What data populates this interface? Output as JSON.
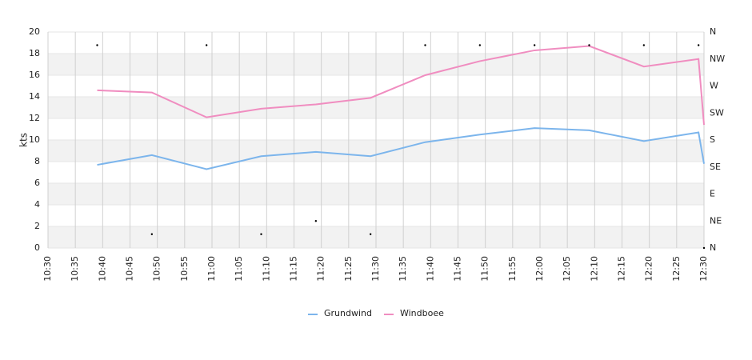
{
  "chart_data": {
    "type": "line",
    "ylabel": "kts",
    "x": [
      "10:39",
      "10:49",
      "10:59",
      "11:09",
      "11:19",
      "11:29",
      "11:39",
      "11:49",
      "11:59",
      "12:09",
      "12:19",
      "12:29",
      "12:30"
    ],
    "xlim": [
      "10:30",
      "12:30"
    ],
    "xticks": [
      "10:30",
      "10:35",
      "10:40",
      "10:45",
      "10:50",
      "10:55",
      "11:00",
      "11:05",
      "11:10",
      "11:15",
      "11:20",
      "11:25",
      "11:30",
      "11:35",
      "11:40",
      "11:45",
      "11:50",
      "11:55",
      "12:00",
      "12:05",
      "12:10",
      "12:15",
      "12:20",
      "12:25",
      "12:30"
    ],
    "ylim": [
      0,
      20
    ],
    "yticks": [
      0,
      2,
      4,
      6,
      8,
      10,
      12,
      14,
      16,
      18,
      20
    ],
    "y2lim": [
      0,
      360
    ],
    "y2ticks": [
      {
        "value": 0,
        "label": "N"
      },
      {
        "value": 45,
        "label": "NE"
      },
      {
        "value": 90,
        "label": "E"
      },
      {
        "value": 135,
        "label": "SE"
      },
      {
        "value": 180,
        "label": "S"
      },
      {
        "value": 225,
        "label": "SW"
      },
      {
        "value": 270,
        "label": "W"
      },
      {
        "value": 315,
        "label": "NW"
      },
      {
        "value": 360,
        "label": "N"
      }
    ],
    "grid": true,
    "band_color": "#f2f2f2",
    "legend": "bottom",
    "series": [
      {
        "name": "Grundwind",
        "color": "#7cb5ec",
        "values": [
          7.7,
          8.6,
          7.3,
          8.5,
          8.9,
          8.5,
          9.8,
          10.5,
          11.1,
          10.9,
          9.9,
          10.7,
          7.8
        ]
      },
      {
        "name": "Windboee",
        "color": "#f08dc0",
        "values": [
          14.6,
          14.4,
          12.1,
          12.9,
          13.3,
          13.9,
          16.0,
          17.3,
          18.3,
          18.7,
          16.8,
          17.5,
          11.4
        ]
      },
      {
        "type": "scatter",
        "axis": "y2",
        "color": "#000000",
        "values": [
          338,
          23,
          338,
          23,
          45,
          23,
          338,
          338,
          338,
          338,
          338,
          338,
          0
        ]
      }
    ]
  }
}
